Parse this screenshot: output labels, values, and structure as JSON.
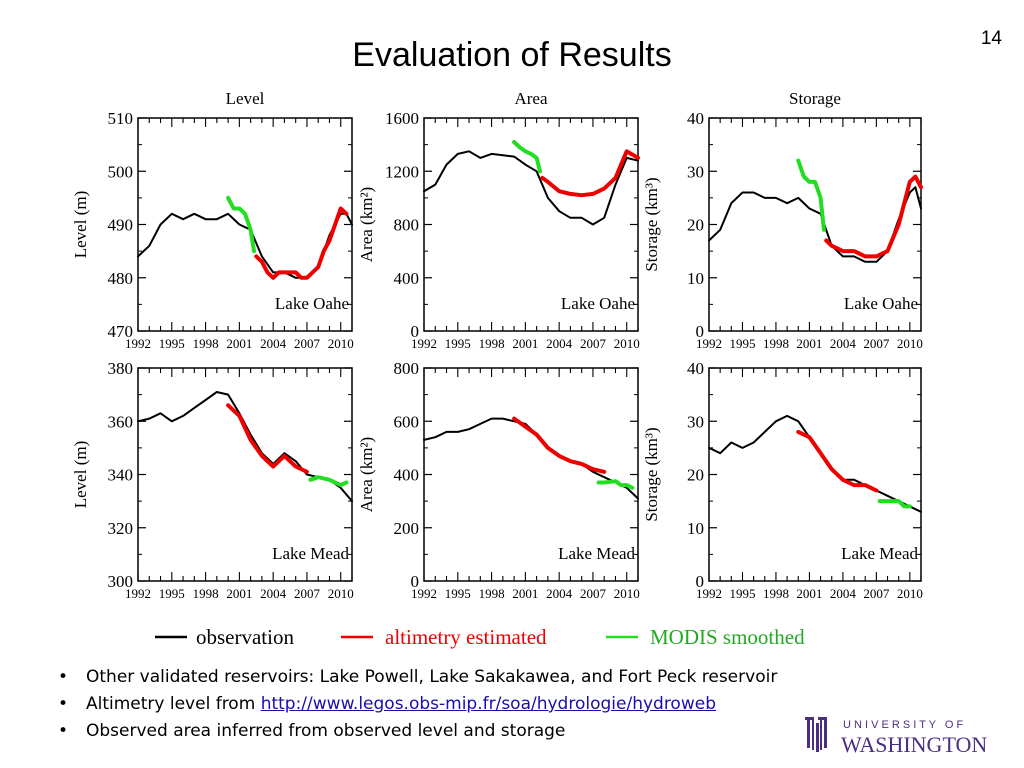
{
  "slide": {
    "title": "Evaluation of Results",
    "number": "14"
  },
  "colors": {
    "observation": "#000000",
    "altimetry": "#ee0000",
    "modis": "#22dd22"
  },
  "legend": {
    "observation": "observation",
    "altimetry": "altimetry estimated",
    "modis": "MODIS smoothed"
  },
  "columns": [
    "Level",
    "Area",
    "Storage"
  ],
  "bullets": [
    {
      "text": "Other validated reservoirs: Lake Powell, Lake Sakakawea, and Fort Peck reservoir"
    },
    {
      "text": "Altimetry level from ",
      "link": "http://www.legos.obs-mip.fr/soa/hydrologie/hydroweb"
    },
    {
      "text": "Observed area inferred from observed level and storage"
    }
  ],
  "logo": {
    "top": "U N I V E R S I T Y   O F",
    "bottom": "WASHINGTON"
  },
  "chart_data": [
    {
      "type": "line",
      "title": "Level",
      "ylabel": "Level (m)",
      "annotation": "Lake Oahe",
      "xlim": [
        1992,
        2011
      ],
      "ylim": [
        470,
        510
      ],
      "xticks": [
        "1992",
        "1995",
        "1998",
        "2001",
        "2004",
        "2007",
        "2010"
      ],
      "yticks": [
        "470",
        "480",
        "490",
        "500",
        "510"
      ],
      "series": [
        {
          "name": "observation",
          "x": [
            1992,
            1993,
            1994,
            1995,
            1996,
            1997,
            1998,
            1999,
            2000,
            2001,
            2002,
            2003,
            2004,
            2005,
            2006,
            2007,
            2008,
            2009,
            2010,
            2010.5,
            2011
          ],
          "y": [
            484,
            486,
            490,
            492,
            491,
            492,
            491,
            491,
            492,
            490,
            489,
            484,
            481,
            481,
            480,
            480,
            482,
            488,
            492,
            492,
            490
          ]
        },
        {
          "name": "MODIS smoothed",
          "x": [
            2000,
            2000.5,
            2001,
            2001.5,
            2002,
            2002.3
          ],
          "y": [
            495,
            493,
            493,
            492,
            489,
            485
          ]
        },
        {
          "name": "altimetry estimated",
          "x": [
            2002.5,
            2003,
            2003.5,
            2004,
            2004.5,
            2005,
            2005.5,
            2006,
            2006.5,
            2007,
            2007.5,
            2008,
            2008.5,
            2009,
            2009.5,
            2010,
            2010.5
          ],
          "y": [
            484,
            483,
            481,
            480,
            481,
            481,
            481,
            481,
            480,
            480,
            481,
            482,
            485,
            487,
            490,
            493,
            492
          ]
        }
      ]
    },
    {
      "type": "line",
      "title": "Area",
      "ylabel": "Area (km²)",
      "annotation": "Lake Oahe",
      "xlim": [
        1992,
        2011
      ],
      "ylim": [
        0,
        1600
      ],
      "xticks": [
        "1992",
        "1995",
        "1998",
        "2001",
        "2004",
        "2007",
        "2010"
      ],
      "yticks": [
        "0",
        "400",
        "800",
        "1200",
        "1600"
      ],
      "series": [
        {
          "name": "observation",
          "x": [
            1992,
            1993,
            1994,
            1995,
            1996,
            1997,
            1998,
            1999,
            2000,
            2001,
            2002,
            2003,
            2004,
            2005,
            2006,
            2007,
            2008,
            2009,
            2010,
            2011
          ],
          "y": [
            1050,
            1100,
            1250,
            1330,
            1350,
            1300,
            1330,
            1320,
            1310,
            1250,
            1200,
            1000,
            900,
            850,
            850,
            800,
            850,
            1100,
            1300,
            1280
          ]
        },
        {
          "name": "MODIS smoothed",
          "x": [
            2000,
            2000.5,
            2001,
            2001.5,
            2002,
            2002.3
          ],
          "y": [
            1420,
            1380,
            1350,
            1330,
            1300,
            1200
          ]
        },
        {
          "name": "altimetry estimated",
          "x": [
            2002.5,
            2003,
            2004,
            2005,
            2006,
            2007,
            2008,
            2009,
            2010,
            2011
          ],
          "y": [
            1150,
            1120,
            1050,
            1030,
            1020,
            1030,
            1070,
            1150,
            1350,
            1300
          ]
        }
      ]
    },
    {
      "type": "line",
      "title": "Storage",
      "ylabel": "Storage (km³)",
      "annotation": "Lake Oahe",
      "xlim": [
        1992,
        2011
      ],
      "ylim": [
        0,
        40
      ],
      "xticks": [
        "1992",
        "1995",
        "1998",
        "2001",
        "2004",
        "2007",
        "2010"
      ],
      "yticks": [
        "0",
        "10",
        "20",
        "30",
        "40"
      ],
      "series": [
        {
          "name": "observation",
          "x": [
            1992,
            1993,
            1994,
            1995,
            1996,
            1997,
            1998,
            1999,
            2000,
            2001,
            2002,
            2003,
            2004,
            2005,
            2006,
            2007,
            2008,
            2009,
            2010,
            2010.5,
            2011
          ],
          "y": [
            17,
            19,
            24,
            26,
            26,
            25,
            25,
            24,
            25,
            23,
            22,
            16,
            14,
            14,
            13,
            13,
            15,
            21,
            26,
            27,
            23
          ]
        },
        {
          "name": "MODIS smoothed",
          "x": [
            2000,
            2000.5,
            2001,
            2001.5,
            2002,
            2002.3
          ],
          "y": [
            32,
            29,
            28,
            28,
            25,
            19
          ]
        },
        {
          "name": "altimetry estimated",
          "x": [
            2002.5,
            2003,
            2004,
            2005,
            2006,
            2007,
            2008,
            2009,
            2010,
            2010.5,
            2011
          ],
          "y": [
            17,
            16,
            15,
            15,
            14,
            14,
            15,
            20,
            28,
            29,
            27
          ]
        }
      ]
    },
    {
      "type": "line",
      "title": "",
      "ylabel": "Level (m)",
      "annotation": "Lake Mead",
      "xlim": [
        1992,
        2011
      ],
      "ylim": [
        300,
        380
      ],
      "xticks": [
        "1992",
        "1995",
        "1998",
        "2001",
        "2004",
        "2007",
        "2010"
      ],
      "yticks": [
        "300",
        "320",
        "340",
        "360",
        "380"
      ],
      "series": [
        {
          "name": "observation",
          "x": [
            1992,
            1993,
            1994,
            1995,
            1996,
            1997,
            1998,
            1999,
            2000,
            2001,
            2002,
            2003,
            2004,
            2005,
            2006,
            2007,
            2008,
            2009,
            2010,
            2011
          ],
          "y": [
            360,
            361,
            363,
            360,
            362,
            365,
            368,
            371,
            370,
            363,
            355,
            348,
            344,
            348,
            345,
            340,
            339,
            338,
            335,
            330
          ]
        },
        {
          "name": "altimetry estimated",
          "x": [
            2000,
            2001,
            2002,
            2003,
            2004,
            2005,
            2006,
            2007
          ],
          "y": [
            366,
            362,
            353,
            347,
            343,
            347,
            343,
            341
          ]
        },
        {
          "name": "MODIS smoothed",
          "x": [
            2007.3,
            2008,
            2009,
            2009.5,
            2010,
            2010.5
          ],
          "y": [
            338,
            339,
            338,
            337,
            336,
            337
          ]
        }
      ]
    },
    {
      "type": "line",
      "title": "",
      "ylabel": "Area (km²)",
      "annotation": "Lake Mead",
      "xlim": [
        1992,
        2011
      ],
      "ylim": [
        0,
        800
      ],
      "xticks": [
        "1992",
        "1995",
        "1998",
        "2001",
        "2004",
        "2007",
        "2010"
      ],
      "yticks": [
        "0",
        "200",
        "400",
        "600",
        "800"
      ],
      "series": [
        {
          "name": "observation",
          "x": [
            1992,
            1993,
            1994,
            1995,
            1996,
            1997,
            1998,
            1999,
            2000,
            2001,
            2002,
            2003,
            2004,
            2005,
            2006,
            2007,
            2008,
            2009,
            2010,
            2011
          ],
          "y": [
            530,
            540,
            560,
            560,
            570,
            590,
            610,
            610,
            600,
            590,
            550,
            500,
            470,
            450,
            440,
            410,
            390,
            370,
            350,
            310
          ]
        },
        {
          "name": "altimetry estimated",
          "x": [
            2000,
            2001,
            2002,
            2003,
            2004,
            2005,
            2006,
            2007,
            2008
          ],
          "y": [
            610,
            580,
            550,
            500,
            470,
            450,
            440,
            420,
            410
          ]
        },
        {
          "name": "MODIS smoothed",
          "x": [
            2007.5,
            2008,
            2009,
            2009.5,
            2010,
            2010.5
          ],
          "y": [
            370,
            370,
            375,
            360,
            360,
            350
          ]
        }
      ]
    },
    {
      "type": "line",
      "title": "",
      "ylabel": "Storage (km³)",
      "annotation": "Lake Mead",
      "xlim": [
        1992,
        2011
      ],
      "ylim": [
        0,
        40
      ],
      "xticks": [
        "1992",
        "1995",
        "1998",
        "2001",
        "2004",
        "2007",
        "2010"
      ],
      "yticks": [
        "0",
        "10",
        "20",
        "30",
        "40"
      ],
      "series": [
        {
          "name": "observation",
          "x": [
            1992,
            1993,
            1994,
            1995,
            1996,
            1997,
            1998,
            1999,
            2000,
            2001,
            2002,
            2003,
            2004,
            2005,
            2006,
            2007,
            2008,
            2009,
            2010,
            2011
          ],
          "y": [
            25,
            24,
            26,
            25,
            26,
            28,
            30,
            31,
            30,
            27,
            24,
            21,
            19,
            19,
            18,
            17,
            16,
            15,
            14,
            13
          ]
        },
        {
          "name": "altimetry estimated",
          "x": [
            2000,
            2001,
            2002,
            2003,
            2004,
            2005,
            2006,
            2007
          ],
          "y": [
            28,
            27,
            24,
            21,
            19,
            18,
            18,
            17
          ]
        },
        {
          "name": "MODIS smoothed",
          "x": [
            2007.3,
            2008,
            2009,
            2009.5,
            2010
          ],
          "y": [
            15,
            15,
            15,
            14,
            14
          ]
        }
      ]
    }
  ]
}
